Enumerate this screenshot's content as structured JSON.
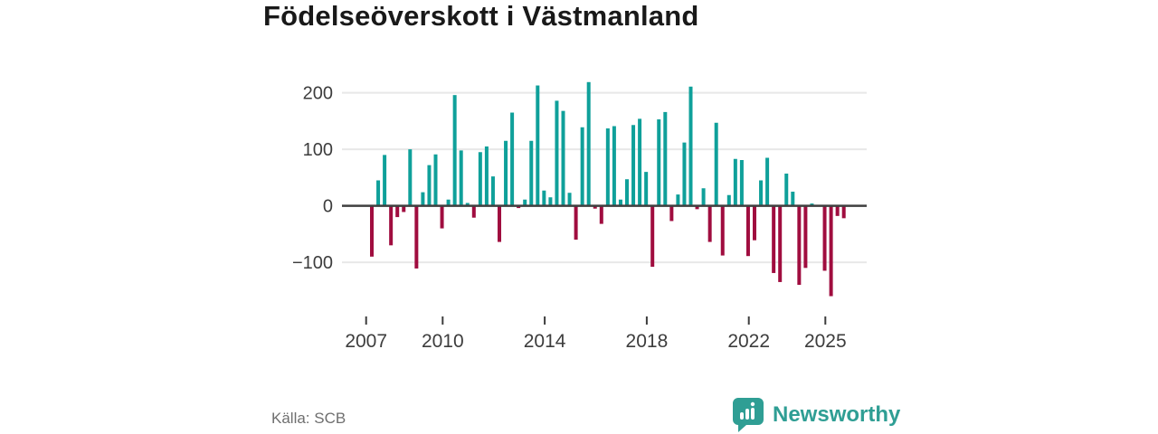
{
  "chart_data": {
    "type": "bar",
    "title": "Födelseöverskott i Västmanland",
    "source_label": "Källa: SCB",
    "period": "quarterly",
    "start_year": 2007,
    "start_quarter": 1,
    "end_year": 2025,
    "end_quarter": 3,
    "grid": true,
    "legend": "none",
    "ylim": [
      -175,
      230
    ],
    "y_ticks": [
      {
        "value": 200,
        "label": "200"
      },
      {
        "value": 100,
        "label": "100"
      },
      {
        "value": 0,
        "label": "0"
      },
      {
        "value": -100,
        "label": "−100"
      }
    ],
    "x_tick_years": [
      2007,
      2010,
      2014,
      2018,
      2022,
      2025
    ],
    "colors": {
      "positive": "#0fa09a",
      "negative": "#a00d3f",
      "zero_line": "#3f3f3f",
      "gridline": "#e8e8e8",
      "axis_text": "#3d3d3d"
    },
    "values": [
      -90,
      45,
      90,
      -70,
      -20,
      -11,
      100,
      -111,
      24,
      72,
      91,
      -40,
      11,
      196,
      98,
      5,
      -21,
      95,
      105,
      52,
      -64,
      115,
      165,
      -4,
      11,
      115,
      213,
      27,
      15,
      186,
      168,
      23,
      -60,
      139,
      219,
      -5,
      -32,
      137,
      141,
      11,
      47,
      143,
      154,
      60,
      -108,
      153,
      166,
      -27,
      20,
      112,
      211,
      -6,
      31,
      -64,
      147,
      -88,
      19,
      83,
      81,
      -89,
      -61,
      45,
      85,
      -119,
      -135,
      57,
      25,
      -140,
      -110,
      4,
      0,
      -115,
      -160,
      -18,
      -22
    ]
  },
  "branding": {
    "wordmark": "Newsworthy",
    "brand_color": "#2f9e94"
  }
}
